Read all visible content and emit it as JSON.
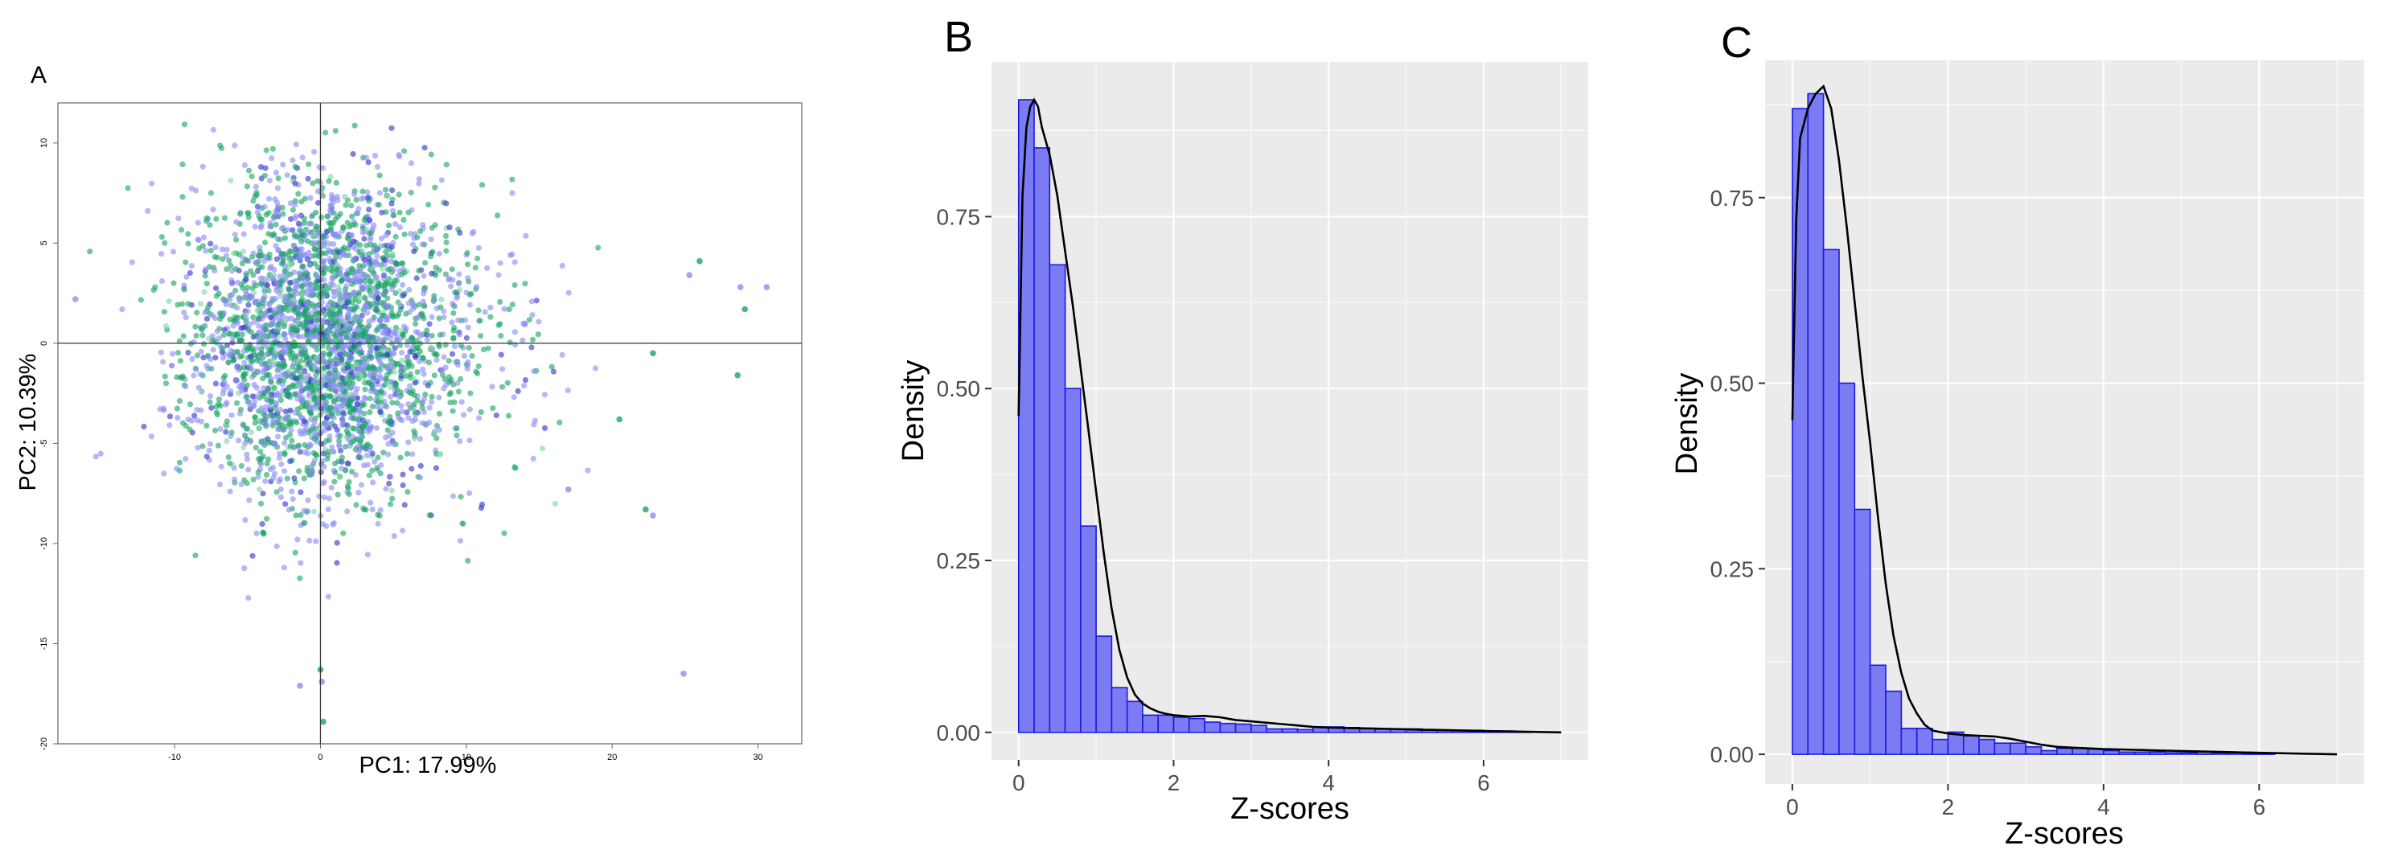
{
  "panels": {
    "a": {
      "letter": "A",
      "xlabel": "PC1: 17.99%",
      "ylabel": "PC2: 10.39%"
    },
    "b": {
      "letter": "B",
      "xlabel": "Z-scores",
      "ylabel": "Density"
    },
    "c": {
      "letter": "C",
      "xlabel": "Z-scores",
      "ylabel": "Density"
    }
  },
  "colors": {
    "bar_fill": "#7b7bf4",
    "bar_stroke": "#1a1ae0",
    "density_line": "#000000",
    "panel_background": "#ebebeb",
    "grid": "#ffffff",
    "scatter_series": [
      "#8c8cf5",
      "#1aa664",
      "#3333cc",
      "#7fd9a8"
    ]
  },
  "chart_data": [
    {
      "type": "scatter",
      "panel": "A",
      "xlabel": "PC1: 17.99%",
      "ylabel": "PC2: 10.39%",
      "xlim": [
        -18,
        33
      ],
      "ylim": [
        -20,
        12
      ],
      "xticks": [
        -10,
        0,
        10,
        20,
        30
      ],
      "yticks": [
        10,
        5,
        0,
        -5,
        -10,
        -15,
        -20
      ],
      "reference_lines": {
        "x": 0,
        "y": 0
      },
      "grid": false,
      "point_cloud": {
        "n_points": 3200,
        "center": [
          0.2,
          0.2
        ],
        "spread_pc1": 4.6,
        "spread_pc2": 3.8
      },
      "outliers": [
        [
          25.3,
          3.4
        ],
        [
          26.0,
          4.1
        ],
        [
          28.8,
          2.8
        ],
        [
          29.1,
          1.7
        ],
        [
          30.6,
          2.8
        ],
        [
          28.6,
          -1.6
        ],
        [
          22.8,
          -8.6
        ],
        [
          22.3,
          -8.3
        ],
        [
          24.9,
          -16.5
        ],
        [
          0.0,
          -16.3
        ],
        [
          0.1,
          -16.9
        ],
        [
          0.2,
          -18.9
        ],
        [
          -16.8,
          2.2
        ],
        [
          20.5,
          -3.8
        ],
        [
          17.0,
          -7.3
        ],
        [
          22.8,
          -0.5
        ],
        [
          -1.4,
          -17.1
        ]
      ]
    },
    {
      "type": "bar",
      "panel": "B",
      "xlabel": "Z-scores",
      "ylabel": "Density",
      "xlim": [
        -0.35,
        7.35
      ],
      "ylim": [
        -0.04,
        0.975
      ],
      "xticks": [
        0,
        2,
        4,
        6
      ],
      "yticks": [
        0.0,
        0.25,
        0.5,
        0.75
      ],
      "ytick_labels": [
        "0.00",
        "0.25",
        "0.50",
        "0.75"
      ],
      "grid": true,
      "bin_width": 0.2,
      "bin_start": 0.0,
      "values": [
        0.92,
        0.85,
        0.68,
        0.5,
        0.3,
        0.14,
        0.065,
        0.045,
        0.025,
        0.025,
        0.022,
        0.02,
        0.015,
        0.013,
        0.012,
        0.01,
        0.005,
        0.005,
        0.004,
        0.008,
        0.008,
        0.007,
        0.006,
        0.005,
        0.005,
        0.005,
        0.003,
        0.003,
        0.003,
        0.003,
        0.002,
        0.002,
        0.001
      ],
      "density_curve": {
        "x": [
          0.0,
          0.05,
          0.1,
          0.15,
          0.2,
          0.25,
          0.3,
          0.4,
          0.5,
          0.6,
          0.7,
          0.8,
          0.9,
          1.0,
          1.1,
          1.2,
          1.3,
          1.4,
          1.5,
          1.6,
          1.7,
          1.8,
          1.9,
          2.0,
          2.2,
          2.4,
          2.6,
          2.8,
          3.0,
          3.2,
          3.4,
          3.6,
          3.8,
          4.0,
          4.4,
          4.8,
          5.2,
          5.6,
          6.0,
          6.5,
          7.0
        ],
        "y": [
          0.46,
          0.78,
          0.88,
          0.91,
          0.92,
          0.91,
          0.88,
          0.84,
          0.78,
          0.7,
          0.62,
          0.53,
          0.44,
          0.35,
          0.26,
          0.18,
          0.12,
          0.08,
          0.055,
          0.042,
          0.035,
          0.03,
          0.027,
          0.025,
          0.023,
          0.024,
          0.022,
          0.018,
          0.016,
          0.014,
          0.012,
          0.01,
          0.008,
          0.007,
          0.006,
          0.005,
          0.004,
          0.003,
          0.002,
          0.001,
          0.0
        ]
      }
    },
    {
      "type": "bar",
      "panel": "C",
      "xlabel": "Z-scores",
      "ylabel": "Density",
      "xlim": [
        -0.35,
        7.35
      ],
      "ylim": [
        -0.04,
        0.935
      ],
      "xticks": [
        0,
        2,
        4,
        6
      ],
      "yticks": [
        0.0,
        0.25,
        0.5,
        0.75
      ],
      "ytick_labels": [
        "0.00",
        "0.25",
        "0.50",
        "0.75"
      ],
      "grid": true,
      "bin_width": 0.2,
      "bin_start": 0.0,
      "values": [
        0.87,
        0.89,
        0.68,
        0.5,
        0.33,
        0.12,
        0.085,
        0.035,
        0.035,
        0.02,
        0.03,
        0.025,
        0.02,
        0.015,
        0.015,
        0.01,
        0.005,
        0.008,
        0.008,
        0.007,
        0.005,
        0.003,
        0.003,
        0.003,
        0.002,
        0.002,
        0.004,
        0.002,
        0.002,
        0.001,
        0.001
      ],
      "density_curve": {
        "x": [
          0.0,
          0.05,
          0.1,
          0.2,
          0.3,
          0.4,
          0.5,
          0.6,
          0.7,
          0.8,
          0.9,
          1.0,
          1.1,
          1.2,
          1.3,
          1.4,
          1.5,
          1.6,
          1.7,
          1.8,
          1.9,
          2.0,
          2.2,
          2.4,
          2.6,
          2.8,
          3.0,
          3.2,
          3.4,
          3.6,
          3.8,
          4.0,
          4.4,
          4.8,
          5.2,
          5.6,
          6.0,
          6.5,
          7.0
        ],
        "y": [
          0.45,
          0.72,
          0.83,
          0.87,
          0.89,
          0.9,
          0.87,
          0.8,
          0.71,
          0.61,
          0.51,
          0.42,
          0.32,
          0.23,
          0.16,
          0.11,
          0.075,
          0.055,
          0.04,
          0.032,
          0.03,
          0.028,
          0.026,
          0.025,
          0.024,
          0.021,
          0.017,
          0.013,
          0.01,
          0.009,
          0.008,
          0.007,
          0.006,
          0.005,
          0.004,
          0.003,
          0.002,
          0.001,
          0.0
        ]
      }
    }
  ]
}
